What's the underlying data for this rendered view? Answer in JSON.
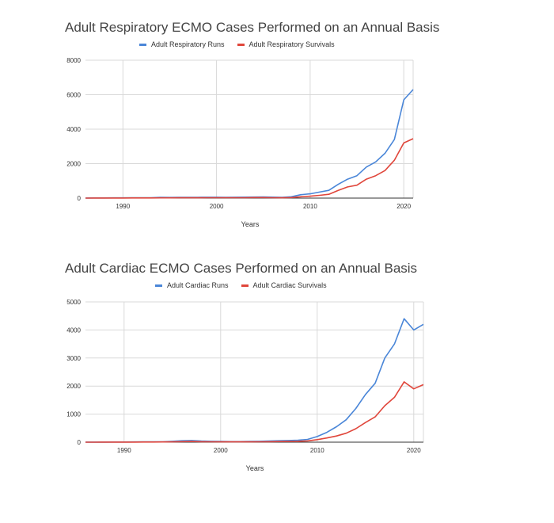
{
  "chart_data": [
    {
      "type": "line",
      "title": "Adult Respiratory ECMO Cases Performed on an Annual Basis",
      "xlabel": "Years",
      "ylabel": "",
      "xlim": [
        1986,
        2021
      ],
      "ylim": [
        0,
        8000
      ],
      "xticks": [
        1990,
        2000,
        2010,
        2020
      ],
      "yticks": [
        0,
        2000,
        4000,
        6000,
        8000
      ],
      "grid": true,
      "legend": "top",
      "x": [
        1986,
        1987,
        1988,
        1989,
        1990,
        1991,
        1992,
        1993,
        1994,
        1995,
        1996,
        1997,
        1998,
        1999,
        2000,
        2001,
        2002,
        2003,
        2004,
        2005,
        2006,
        2007,
        2008,
        2009,
        2010,
        2011,
        2012,
        2013,
        2014,
        2015,
        2016,
        2017,
        2018,
        2019,
        2020,
        2021
      ],
      "series": [
        {
          "name": "Adult Respiratory Runs",
          "color": "#4a86d8",
          "values": [
            5,
            8,
            10,
            12,
            15,
            18,
            20,
            25,
            40,
            35,
            40,
            45,
            45,
            50,
            50,
            45,
            50,
            55,
            60,
            70,
            55,
            45,
            80,
            200,
            250,
            350,
            450,
            800,
            1100,
            1300,
            1800,
            2100,
            2600,
            3400,
            5700,
            6300
          ]
        },
        {
          "name": "Adult Respiratory Survivals",
          "color": "#e0463b",
          "values": [
            2,
            3,
            4,
            5,
            6,
            8,
            9,
            10,
            15,
            15,
            18,
            20,
            20,
            22,
            25,
            22,
            25,
            25,
            30,
            30,
            25,
            20,
            30,
            80,
            110,
            160,
            220,
            450,
            650,
            750,
            1100,
            1300,
            1600,
            2200,
            3200,
            3450
          ]
        }
      ]
    },
    {
      "type": "line",
      "title": "Adult Cardiac ECMO Cases Performed on an Annual Basis",
      "xlabel": "Years",
      "ylabel": "",
      "xlim": [
        1986,
        2021
      ],
      "ylim": [
        0,
        5000
      ],
      "xticks": [
        1990,
        2000,
        2010,
        2020
      ],
      "yticks": [
        0,
        1000,
        2000,
        3000,
        4000,
        5000
      ],
      "grid": true,
      "legend": "top",
      "x": [
        1986,
        1987,
        1988,
        1989,
        1990,
        1991,
        1992,
        1993,
        1994,
        1995,
        1996,
        1997,
        1998,
        1999,
        2000,
        2001,
        2002,
        2003,
        2004,
        2005,
        2006,
        2007,
        2008,
        2009,
        2010,
        2011,
        2012,
        2013,
        2014,
        2015,
        2016,
        2017,
        2018,
        2019,
        2020,
        2021
      ],
      "series": [
        {
          "name": "Adult Cardiac Runs",
          "color": "#4a86d8",
          "values": [
            2,
            3,
            4,
            5,
            6,
            8,
            10,
            12,
            15,
            30,
            50,
            60,
            40,
            30,
            25,
            20,
            20,
            25,
            30,
            40,
            50,
            60,
            70,
            100,
            200,
            350,
            550,
            800,
            1200,
            1700,
            2100,
            3000,
            3500,
            4400,
            4000,
            4200
          ]
        },
        {
          "name": "Adult Cardiac Survivals",
          "color": "#e0463b",
          "values": [
            1,
            1,
            2,
            2,
            3,
            4,
            5,
            6,
            8,
            12,
            20,
            25,
            18,
            14,
            12,
            10,
            10,
            12,
            14,
            18,
            22,
            26,
            30,
            45,
            90,
            150,
            220,
            320,
            480,
            700,
            900,
            1300,
            1600,
            2150,
            1900,
            2050
          ]
        }
      ]
    }
  ]
}
